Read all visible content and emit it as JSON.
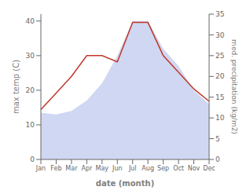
{
  "chart_data": {
    "type": "combo",
    "xlabel": "date (month)",
    "ylabel": "max temp (C)",
    "y2label": "med. precipitation (kg/m2)",
    "categories": [
      "Jan",
      "Feb",
      "Mar",
      "Apr",
      "May",
      "Jun",
      "Jul",
      "Aug",
      "Sep",
      "Oct",
      "Nov",
      "Dec"
    ],
    "series": [
      {
        "type": "area",
        "color": "#c8d0f0",
        "values": [
          13.5,
          13.0,
          14.0,
          17.0,
          22.0,
          30.0,
          40.0,
          40.0,
          32.0,
          27.0,
          20.0,
          16.0
        ]
      },
      {
        "type": "line",
        "color": "#c0392b",
        "axis": "y2",
        "values": [
          12.0,
          16.0,
          20.0,
          25.0,
          25.0,
          23.5,
          33.0,
          33.0,
          25.0,
          21.0,
          17.0,
          14.0
        ]
      }
    ],
    "ylim": [
      0,
      42
    ],
    "yticks": [
      0,
      10,
      20,
      30,
      40
    ],
    "y2lim": [
      0,
      35
    ],
    "y2ticks": [
      0,
      5,
      10,
      15,
      20,
      25,
      30,
      35
    ],
    "grid": false
  }
}
